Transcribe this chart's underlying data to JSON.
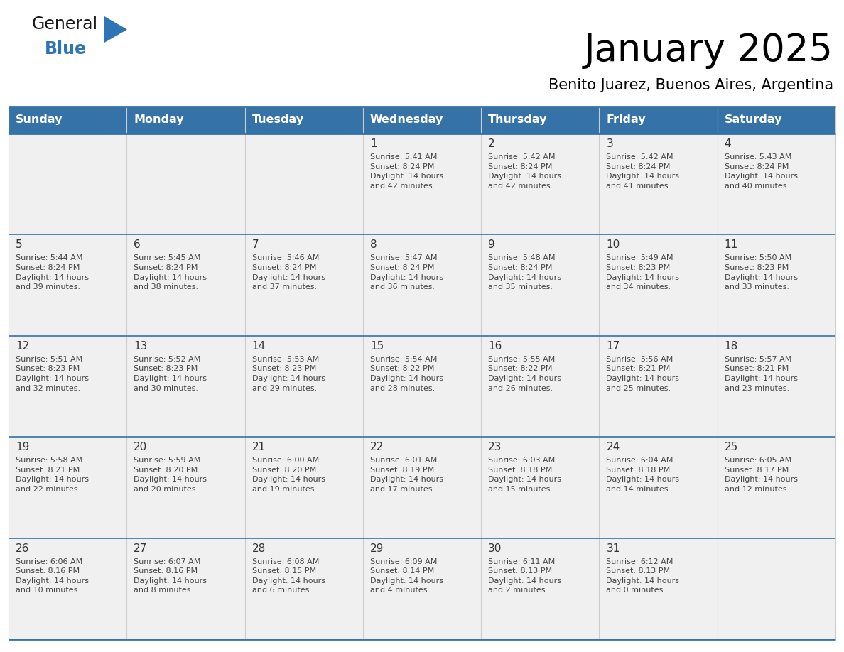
{
  "title": "January 2025",
  "subtitle": "Benito Juarez, Buenos Aires, Argentina",
  "days_of_week": [
    "Sunday",
    "Monday",
    "Tuesday",
    "Wednesday",
    "Thursday",
    "Friday",
    "Saturday"
  ],
  "header_bg": "#3572A8",
  "header_text": "#FFFFFF",
  "cell_bg": "#F0F0F0",
  "row_border_color": "#3572A8",
  "col_border_color": "#CCCCCC",
  "text_color": "#444444",
  "day_number_color": "#333333",
  "logo_general_color": "#1A1A1A",
  "logo_blue_color": "#2E75B6",
  "logo_triangle_color": "#2E75B6",
  "weeks": [
    [
      {
        "day": null,
        "info": null
      },
      {
        "day": null,
        "info": null
      },
      {
        "day": null,
        "info": null
      },
      {
        "day": 1,
        "info": "Sunrise: 5:41 AM\nSunset: 8:24 PM\nDaylight: 14 hours\nand 42 minutes."
      },
      {
        "day": 2,
        "info": "Sunrise: 5:42 AM\nSunset: 8:24 PM\nDaylight: 14 hours\nand 42 minutes."
      },
      {
        "day": 3,
        "info": "Sunrise: 5:42 AM\nSunset: 8:24 PM\nDaylight: 14 hours\nand 41 minutes."
      },
      {
        "day": 4,
        "info": "Sunrise: 5:43 AM\nSunset: 8:24 PM\nDaylight: 14 hours\nand 40 minutes."
      }
    ],
    [
      {
        "day": 5,
        "info": "Sunrise: 5:44 AM\nSunset: 8:24 PM\nDaylight: 14 hours\nand 39 minutes."
      },
      {
        "day": 6,
        "info": "Sunrise: 5:45 AM\nSunset: 8:24 PM\nDaylight: 14 hours\nand 38 minutes."
      },
      {
        "day": 7,
        "info": "Sunrise: 5:46 AM\nSunset: 8:24 PM\nDaylight: 14 hours\nand 37 minutes."
      },
      {
        "day": 8,
        "info": "Sunrise: 5:47 AM\nSunset: 8:24 PM\nDaylight: 14 hours\nand 36 minutes."
      },
      {
        "day": 9,
        "info": "Sunrise: 5:48 AM\nSunset: 8:24 PM\nDaylight: 14 hours\nand 35 minutes."
      },
      {
        "day": 10,
        "info": "Sunrise: 5:49 AM\nSunset: 8:23 PM\nDaylight: 14 hours\nand 34 minutes."
      },
      {
        "day": 11,
        "info": "Sunrise: 5:50 AM\nSunset: 8:23 PM\nDaylight: 14 hours\nand 33 minutes."
      }
    ],
    [
      {
        "day": 12,
        "info": "Sunrise: 5:51 AM\nSunset: 8:23 PM\nDaylight: 14 hours\nand 32 minutes."
      },
      {
        "day": 13,
        "info": "Sunrise: 5:52 AM\nSunset: 8:23 PM\nDaylight: 14 hours\nand 30 minutes."
      },
      {
        "day": 14,
        "info": "Sunrise: 5:53 AM\nSunset: 8:23 PM\nDaylight: 14 hours\nand 29 minutes."
      },
      {
        "day": 15,
        "info": "Sunrise: 5:54 AM\nSunset: 8:22 PM\nDaylight: 14 hours\nand 28 minutes."
      },
      {
        "day": 16,
        "info": "Sunrise: 5:55 AM\nSunset: 8:22 PM\nDaylight: 14 hours\nand 26 minutes."
      },
      {
        "day": 17,
        "info": "Sunrise: 5:56 AM\nSunset: 8:21 PM\nDaylight: 14 hours\nand 25 minutes."
      },
      {
        "day": 18,
        "info": "Sunrise: 5:57 AM\nSunset: 8:21 PM\nDaylight: 14 hours\nand 23 minutes."
      }
    ],
    [
      {
        "day": 19,
        "info": "Sunrise: 5:58 AM\nSunset: 8:21 PM\nDaylight: 14 hours\nand 22 minutes."
      },
      {
        "day": 20,
        "info": "Sunrise: 5:59 AM\nSunset: 8:20 PM\nDaylight: 14 hours\nand 20 minutes."
      },
      {
        "day": 21,
        "info": "Sunrise: 6:00 AM\nSunset: 8:20 PM\nDaylight: 14 hours\nand 19 minutes."
      },
      {
        "day": 22,
        "info": "Sunrise: 6:01 AM\nSunset: 8:19 PM\nDaylight: 14 hours\nand 17 minutes."
      },
      {
        "day": 23,
        "info": "Sunrise: 6:03 AM\nSunset: 8:18 PM\nDaylight: 14 hours\nand 15 minutes."
      },
      {
        "day": 24,
        "info": "Sunrise: 6:04 AM\nSunset: 8:18 PM\nDaylight: 14 hours\nand 14 minutes."
      },
      {
        "day": 25,
        "info": "Sunrise: 6:05 AM\nSunset: 8:17 PM\nDaylight: 14 hours\nand 12 minutes."
      }
    ],
    [
      {
        "day": 26,
        "info": "Sunrise: 6:06 AM\nSunset: 8:16 PM\nDaylight: 14 hours\nand 10 minutes."
      },
      {
        "day": 27,
        "info": "Sunrise: 6:07 AM\nSunset: 8:16 PM\nDaylight: 14 hours\nand 8 minutes."
      },
      {
        "day": 28,
        "info": "Sunrise: 6:08 AM\nSunset: 8:15 PM\nDaylight: 14 hours\nand 6 minutes."
      },
      {
        "day": 29,
        "info": "Sunrise: 6:09 AM\nSunset: 8:14 PM\nDaylight: 14 hours\nand 4 minutes."
      },
      {
        "day": 30,
        "info": "Sunrise: 6:11 AM\nSunset: 8:13 PM\nDaylight: 14 hours\nand 2 minutes."
      },
      {
        "day": 31,
        "info": "Sunrise: 6:12 AM\nSunset: 8:13 PM\nDaylight: 14 hours\nand 0 minutes."
      },
      {
        "day": null,
        "info": null
      }
    ]
  ],
  "fig_width": 11.88,
  "fig_height": 9.18,
  "dpi": 100
}
